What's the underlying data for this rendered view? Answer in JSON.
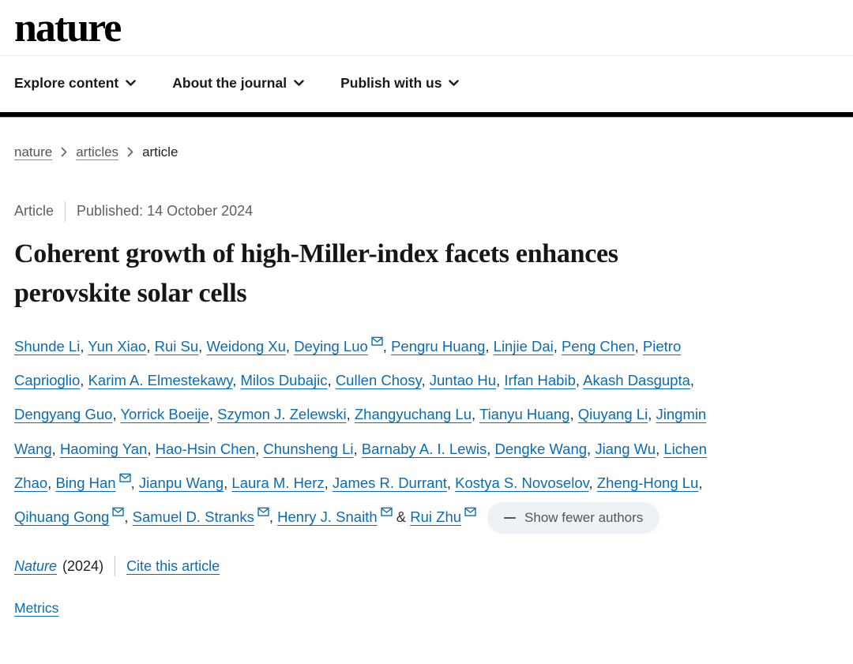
{
  "header": {
    "logo": "nature",
    "nav": [
      {
        "label": "Explore content"
      },
      {
        "label": "About the journal"
      },
      {
        "label": "Publish with us"
      }
    ]
  },
  "breadcrumb": {
    "items": [
      {
        "label": "nature"
      },
      {
        "label": "articles"
      },
      {
        "label": "article"
      }
    ]
  },
  "article": {
    "type_label": "Article",
    "published_text": "Published: 14 October 2024",
    "title": "Coherent growth of high-Miller-index facets enhances perovskite solar cells",
    "authors": [
      {
        "name": "Shunde Li",
        "email": false
      },
      {
        "name": "Yun Xiao",
        "email": false
      },
      {
        "name": "Rui Su",
        "email": false
      },
      {
        "name": "Weidong Xu",
        "email": false
      },
      {
        "name": "Deying Luo",
        "email": true
      },
      {
        "name": "Pengru Huang",
        "email": false
      },
      {
        "name": "Linjie Dai",
        "email": false
      },
      {
        "name": "Peng Chen",
        "email": false
      },
      {
        "name": "Pietro Caprioglio",
        "email": false
      },
      {
        "name": "Karim A. Elmestekawy",
        "email": false
      },
      {
        "name": "Milos Dubajic",
        "email": false
      },
      {
        "name": "Cullen Chosy",
        "email": false
      },
      {
        "name": "Juntao Hu",
        "email": false
      },
      {
        "name": "Irfan Habib",
        "email": false
      },
      {
        "name": "Akash Dasgupta",
        "email": false
      },
      {
        "name": "Dengyang Guo",
        "email": false
      },
      {
        "name": "Yorrick Boeije",
        "email": false
      },
      {
        "name": "Szymon J. Zelewski",
        "email": false
      },
      {
        "name": "Zhangyuchang Lu",
        "email": false
      },
      {
        "name": "Tianyu Huang",
        "email": false
      },
      {
        "name": "Qiuyang Li",
        "email": false
      },
      {
        "name": "Jingmin Wang",
        "email": false
      },
      {
        "name": "Haoming Yan",
        "email": false
      },
      {
        "name": "Hao-Hsin Chen",
        "email": false
      },
      {
        "name": "Chunsheng Li",
        "email": false
      },
      {
        "name": "Barnaby A. I. Lewis",
        "email": false
      },
      {
        "name": "Dengke Wang",
        "email": false
      },
      {
        "name": "Jiang Wu",
        "email": false
      },
      {
        "name": "Lichen Zhao",
        "email": false
      },
      {
        "name": "Bing Han",
        "email": true
      },
      {
        "name": "Jianpu Wang",
        "email": false
      },
      {
        "name": "Laura M. Herz",
        "email": false
      },
      {
        "name": "James R. Durrant",
        "email": false
      },
      {
        "name": "Kostya S. Novoselov",
        "email": false
      },
      {
        "name": "Zheng-Hong Lu",
        "email": false
      },
      {
        "name": "Qihuang Gong",
        "email": true
      },
      {
        "name": "Samuel D. Stranks",
        "email": true
      },
      {
        "name": "Henry J. Snaith",
        "email": true
      },
      {
        "name": "Rui Zhu",
        "email": true
      }
    ],
    "show_fewer_label": "Show fewer authors",
    "journal_name": "Nature",
    "journal_year": "(2024)",
    "cite_link_label": "Cite this article",
    "metrics_link_label": "Metrics"
  },
  "colors": {
    "link_blue": "#0c6cb3",
    "text_dark": "#1a1a1a",
    "muted_gray": "#5f5f5f",
    "breadcrumb_gray": "#555555",
    "pill_background": "#eef1f5",
    "header_bar_black": "#000000"
  }
}
